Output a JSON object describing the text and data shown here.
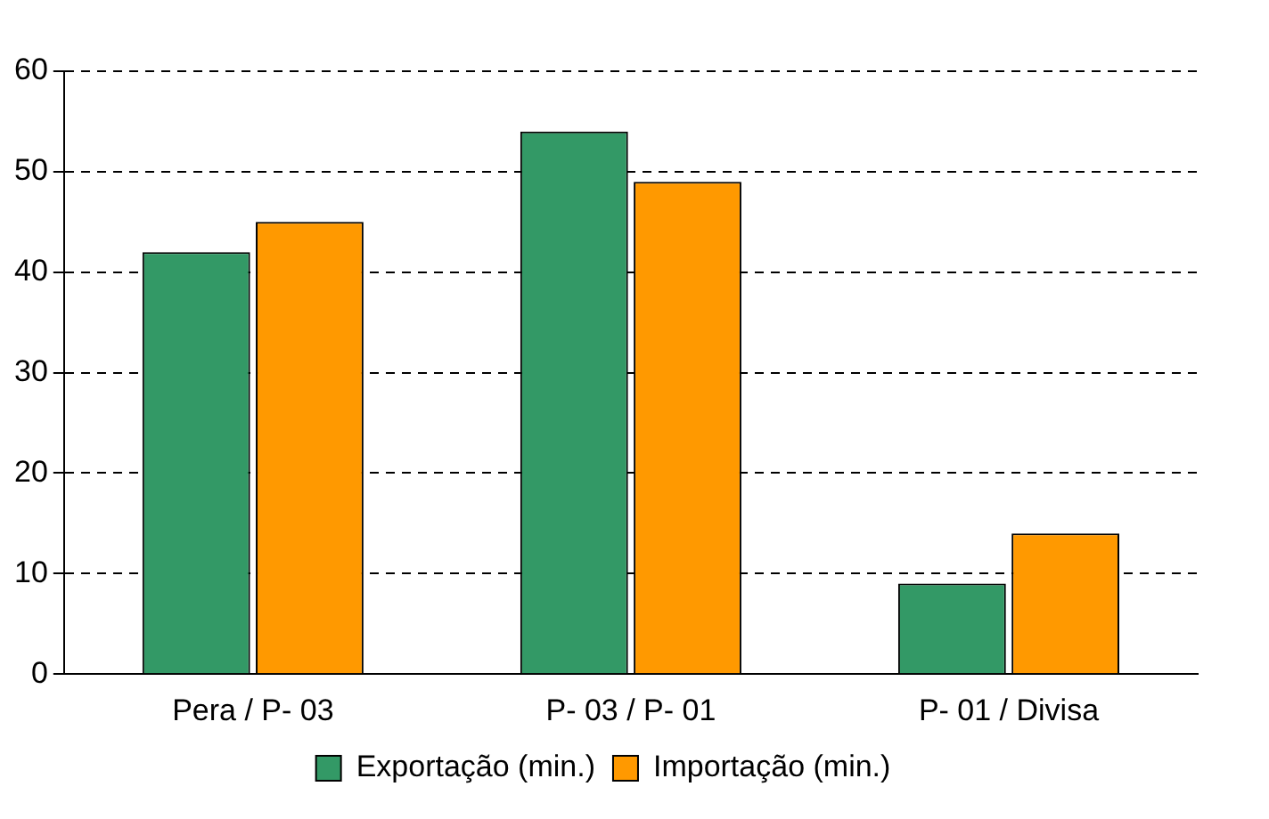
{
  "chart_data": {
    "type": "bar",
    "categories": [
      "Pera / P- 03",
      "P- 03 / P- 01",
      "P- 01 / Divisa"
    ],
    "series": [
      {
        "name": "Exportação (min.)",
        "color": "#339966",
        "values": [
          42,
          54,
          9
        ]
      },
      {
        "name": "Importação (min.)",
        "color": "#ff9900",
        "values": [
          45,
          49,
          14
        ]
      }
    ],
    "ylim": [
      0,
      60
    ],
    "yticks": [
      0,
      10,
      20,
      30,
      40,
      50,
      60
    ],
    "grid": "y",
    "legend": "bottom"
  }
}
